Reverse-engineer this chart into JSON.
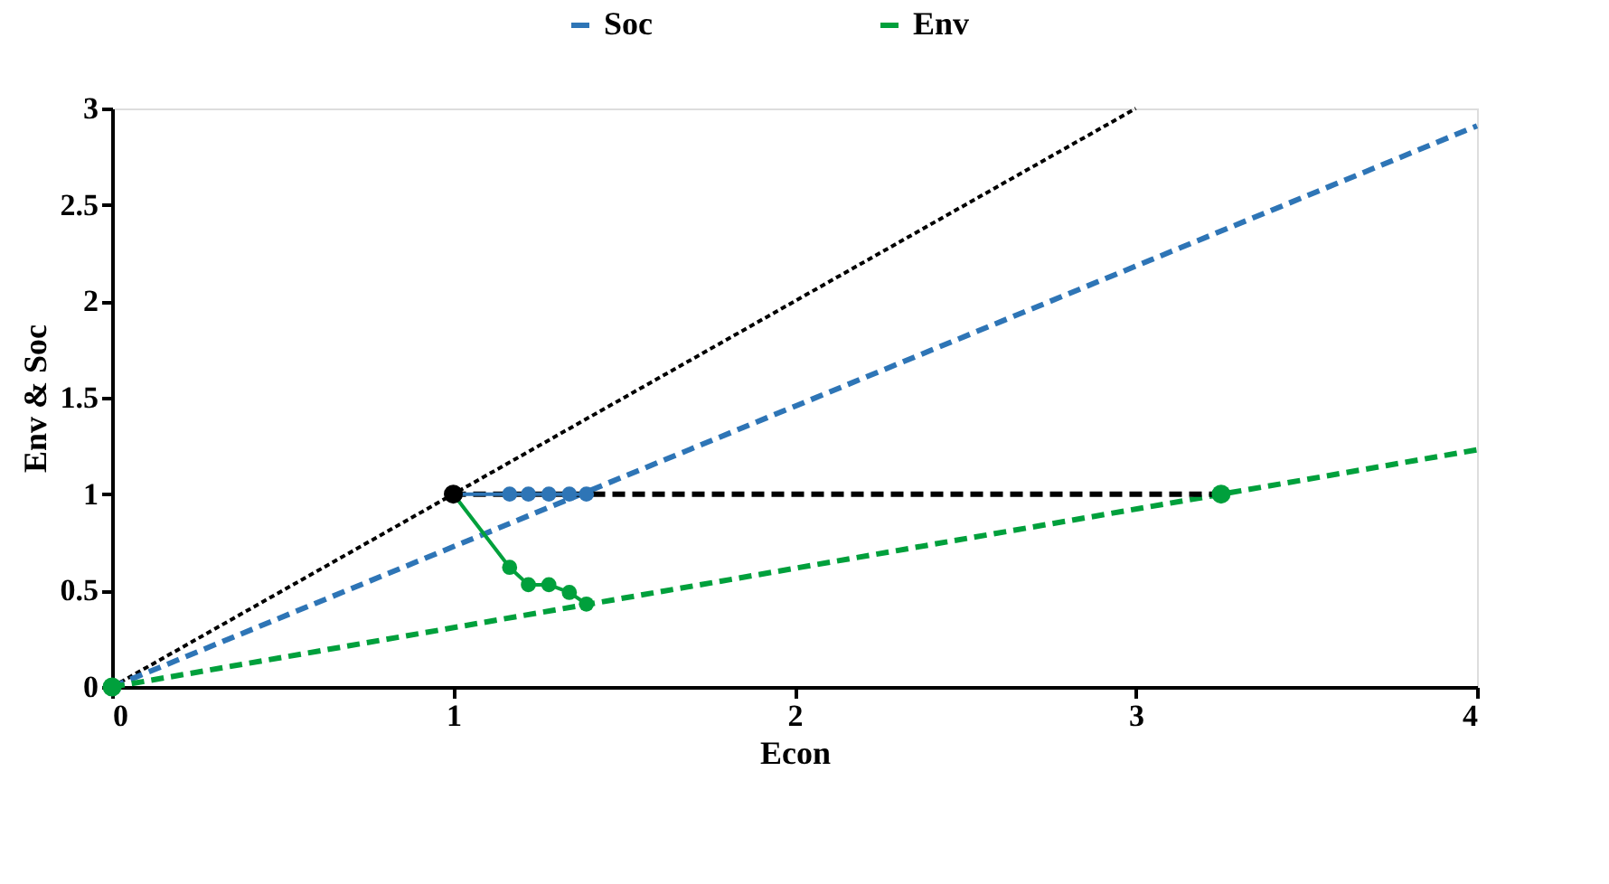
{
  "chart_data": {
    "type": "line",
    "xlabel": "Econ",
    "ylabel": "Env & Soc",
    "xlim": [
      0,
      4
    ],
    "ylim": [
      0,
      3
    ],
    "xticks": [
      0,
      1,
      2,
      3,
      4
    ],
    "yticks": [
      0,
      0.5,
      1,
      1.5,
      2,
      2.5,
      3
    ],
    "grid": false,
    "legend": "top",
    "series": [
      {
        "color": "#000000",
        "x": [
          0,
          3
        ],
        "values": [
          0,
          3
        ],
        "line_style": "dotted",
        "marker": "none"
      },
      {
        "color": "#2e75b6",
        "x": [
          0,
          4
        ],
        "values": [
          0,
          2.91
        ],
        "line_style": "dashed",
        "marker": "none"
      },
      {
        "color": "#00a03c",
        "x": [
          0,
          4
        ],
        "values": [
          0,
          1.23
        ],
        "line_style": "dashed",
        "marker": "none"
      },
      {
        "color": "#000000",
        "x": [
          1,
          3.25
        ],
        "values": [
          1,
          1
        ],
        "line_style": "dashed",
        "marker": "none"
      },
      {
        "name": "Soc",
        "color": "#2e75b6",
        "x": [
          1,
          1.165,
          1.22,
          1.28,
          1.34,
          1.39
        ],
        "values": [
          1,
          1,
          1,
          1,
          1,
          1
        ],
        "line_style": "solid",
        "marker": "circle"
      },
      {
        "name": "Env",
        "color": "#00a03c",
        "x": [
          1,
          1.165,
          1.22,
          1.28,
          1.34,
          1.39
        ],
        "values": [
          1,
          0.62,
          0.53,
          0.53,
          0.49,
          0.43
        ],
        "line_style": "solid",
        "marker": "circle"
      },
      {
        "type": "scatter",
        "color": "#00a03c",
        "x": [
          0,
          3.25
        ],
        "values": [
          0,
          1
        ],
        "marker": "circle"
      },
      {
        "type": "scatter",
        "color": "#000000",
        "x": [
          1
        ],
        "values": [
          1
        ],
        "marker": "circle"
      }
    ]
  }
}
